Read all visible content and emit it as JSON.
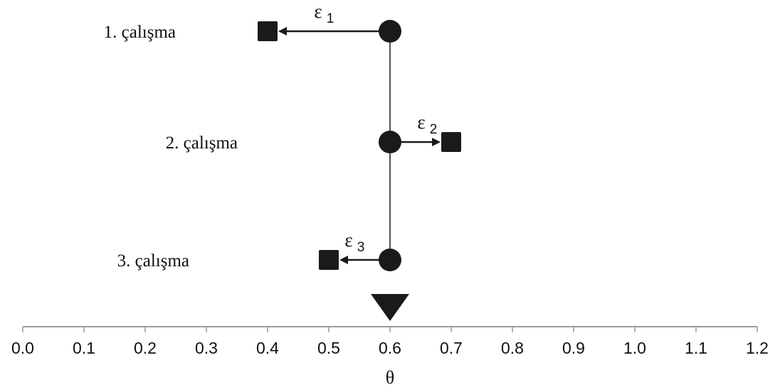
{
  "axis": {
    "min": 0.0,
    "max": 1.2,
    "ticks": [
      "0.0",
      "0.1",
      "0.2",
      "0.3",
      "0.4",
      "0.5",
      "0.6",
      "0.7",
      "0.8",
      "0.9",
      "1.0",
      "1.1",
      "1.2"
    ],
    "title": "θ"
  },
  "overall_effect": 0.6,
  "studies": [
    {
      "label": "1. çalışma",
      "true_effect": 0.6,
      "observed_effect": 0.4,
      "error_symbol": "ε",
      "error_index": "1"
    },
    {
      "label": "2. çalışma",
      "true_effect": 0.6,
      "observed_effect": 0.7,
      "error_symbol": "ε",
      "error_index": "2"
    },
    {
      "label": "3. çalışma",
      "true_effect": 0.6,
      "observed_effect": 0.5,
      "error_symbol": "ε",
      "error_index": "3"
    }
  ],
  "colors": {
    "ink": "#1a1a1a",
    "axis": "#9a9a9a",
    "background": "#ffffff"
  }
}
